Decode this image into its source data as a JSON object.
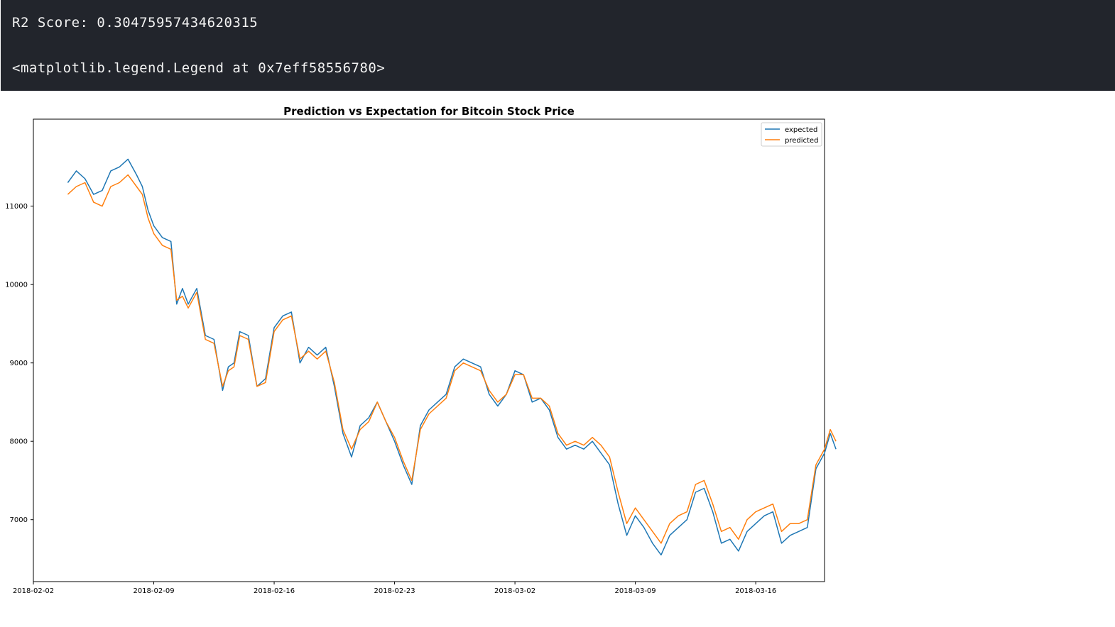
{
  "output": {
    "lines": [
      "R2 Score: 0.30475957434620315",
      "<matplotlib.legend.Legend at 0x7eff58556780>"
    ]
  },
  "colors": {
    "output_bg": "#22252c",
    "output_text": "#f2f2f2",
    "expected": "#1f77b4",
    "predicted": "#ff7f0e"
  },
  "chart_data": {
    "type": "line",
    "title": "Prediction vs Expectation for Bitcoin Stock Price",
    "xlabel": "",
    "ylabel": "",
    "x_range": [
      "2018-02-02",
      "2018-03-20"
    ],
    "ylim": [
      6210,
      12110
    ],
    "x_ticks": [
      "2018-02-02",
      "2018-02-09",
      "2018-02-16",
      "2018-02-23",
      "2018-03-02",
      "2018-03-09",
      "2018-03-16"
    ],
    "y_ticks": [
      7000,
      8000,
      9000,
      10000,
      11000
    ],
    "grid": false,
    "legend_position": "top-right",
    "series": [
      {
        "name": "expected",
        "color": "#1f77b4",
        "points": [
          [
            "2018-02-04",
            11300
          ],
          [
            "2018-02-04",
            11450
          ],
          [
            "2018-02-05",
            11350
          ],
          [
            "2018-02-05",
            11150
          ],
          [
            "2018-02-06",
            11200
          ],
          [
            "2018-02-06",
            11450
          ],
          [
            "2018-02-07",
            11500
          ],
          [
            "2018-02-07",
            11600
          ],
          [
            "2018-02-08",
            11400
          ],
          [
            "2018-02-08",
            11250
          ],
          [
            "2018-02-08",
            10950
          ],
          [
            "2018-02-09",
            10750
          ],
          [
            "2018-02-09",
            10600
          ],
          [
            "2018-02-10",
            10550
          ],
          [
            "2018-02-10",
            9750
          ],
          [
            "2018-02-10",
            9950
          ],
          [
            "2018-02-11",
            9750
          ],
          [
            "2018-02-11",
            9950
          ],
          [
            "2018-02-12",
            9350
          ],
          [
            "2018-02-12",
            9300
          ],
          [
            "2018-02-13",
            8650
          ],
          [
            "2018-02-13",
            8950
          ],
          [
            "2018-02-13",
            9000
          ],
          [
            "2018-02-14",
            9400
          ],
          [
            "2018-02-14",
            9350
          ],
          [
            "2018-02-15",
            8700
          ],
          [
            "2018-02-15",
            8800
          ],
          [
            "2018-02-16",
            9450
          ],
          [
            "2018-02-16",
            9600
          ],
          [
            "2018-02-17",
            9650
          ],
          [
            "2018-02-17",
            9000
          ],
          [
            "2018-02-18",
            9200
          ],
          [
            "2018-02-18",
            9100
          ],
          [
            "2018-02-19",
            9200
          ],
          [
            "2018-02-19",
            8700
          ],
          [
            "2018-02-20",
            8100
          ],
          [
            "2018-02-20",
            7800
          ],
          [
            "2018-02-21",
            8200
          ],
          [
            "2018-02-21",
            8300
          ],
          [
            "2018-02-22",
            8500
          ],
          [
            "2018-02-22",
            8250
          ],
          [
            "2018-02-23",
            8000
          ],
          [
            "2018-02-23",
            7700
          ],
          [
            "2018-02-24",
            7450
          ],
          [
            "2018-02-24",
            8200
          ],
          [
            "2018-02-25",
            8400
          ],
          [
            "2018-02-25",
            8500
          ],
          [
            "2018-02-26",
            8600
          ],
          [
            "2018-02-26",
            8950
          ],
          [
            "2018-02-27",
            9050
          ],
          [
            "2018-02-27",
            9000
          ],
          [
            "2018-02-28",
            8950
          ],
          [
            "2018-02-28",
            8600
          ],
          [
            "2018-03-01",
            8450
          ],
          [
            "2018-03-01",
            8600
          ],
          [
            "2018-03-02",
            8900
          ],
          [
            "2018-03-02",
            8850
          ],
          [
            "2018-03-03",
            8500
          ],
          [
            "2018-03-03",
            8550
          ],
          [
            "2018-03-04",
            8400
          ],
          [
            "2018-03-04",
            8050
          ],
          [
            "2018-03-05",
            7900
          ],
          [
            "2018-03-05",
            7950
          ],
          [
            "2018-03-06",
            7900
          ],
          [
            "2018-03-06",
            8000
          ],
          [
            "2018-03-07",
            7850
          ],
          [
            "2018-03-07",
            7700
          ],
          [
            "2018-03-08",
            7200
          ],
          [
            "2018-03-08",
            6800
          ],
          [
            "2018-03-09",
            7050
          ],
          [
            "2018-03-09",
            6900
          ],
          [
            "2018-03-10",
            6700
          ],
          [
            "2018-03-10",
            6550
          ],
          [
            "2018-03-11",
            6800
          ],
          [
            "2018-03-11",
            6900
          ],
          [
            "2018-03-12",
            7000
          ],
          [
            "2018-03-12",
            7350
          ],
          [
            "2018-03-13",
            7400
          ],
          [
            "2018-03-13",
            7100
          ],
          [
            "2018-03-14",
            6700
          ],
          [
            "2018-03-14",
            6750
          ],
          [
            "2018-03-15",
            6600
          ],
          [
            "2018-03-15",
            6850
          ],
          [
            "2018-03-16",
            6950
          ],
          [
            "2018-03-16",
            7050
          ],
          [
            "2018-03-17",
            7100
          ],
          [
            "2018-03-17",
            6700
          ],
          [
            "2018-03-18",
            6800
          ],
          [
            "2018-03-18",
            6850
          ],
          [
            "2018-03-19",
            6900
          ],
          [
            "2018-03-19",
            7650
          ],
          [
            "2018-03-20",
            7850
          ],
          [
            "2018-03-20",
            8100
          ],
          [
            "2018-03-20",
            7900
          ]
        ]
      },
      {
        "name": "predicted",
        "color": "#ff7f0e",
        "points": [
          [
            "2018-02-04",
            11150
          ],
          [
            "2018-02-04",
            11250
          ],
          [
            "2018-02-05",
            11300
          ],
          [
            "2018-02-05",
            11050
          ],
          [
            "2018-02-06",
            11000
          ],
          [
            "2018-02-06",
            11250
          ],
          [
            "2018-02-07",
            11300
          ],
          [
            "2018-02-07",
            11400
          ],
          [
            "2018-02-08",
            11250
          ],
          [
            "2018-02-08",
            11150
          ],
          [
            "2018-02-08",
            10850
          ],
          [
            "2018-02-09",
            10650
          ],
          [
            "2018-02-09",
            10500
          ],
          [
            "2018-02-10",
            10450
          ],
          [
            "2018-02-10",
            9800
          ],
          [
            "2018-02-10",
            9850
          ],
          [
            "2018-02-11",
            9700
          ],
          [
            "2018-02-11",
            9900
          ],
          [
            "2018-02-12",
            9300
          ],
          [
            "2018-02-12",
            9250
          ],
          [
            "2018-02-13",
            8700
          ],
          [
            "2018-02-13",
            8900
          ],
          [
            "2018-02-13",
            8950
          ],
          [
            "2018-02-14",
            9350
          ],
          [
            "2018-02-14",
            9300
          ],
          [
            "2018-02-15",
            8700
          ],
          [
            "2018-02-15",
            8750
          ],
          [
            "2018-02-16",
            9400
          ],
          [
            "2018-02-16",
            9550
          ],
          [
            "2018-02-17",
            9600
          ],
          [
            "2018-02-17",
            9050
          ],
          [
            "2018-02-18",
            9150
          ],
          [
            "2018-02-18",
            9050
          ],
          [
            "2018-02-19",
            9150
          ],
          [
            "2018-02-19",
            8750
          ],
          [
            "2018-02-20",
            8150
          ],
          [
            "2018-02-20",
            7900
          ],
          [
            "2018-02-21",
            8150
          ],
          [
            "2018-02-21",
            8250
          ],
          [
            "2018-02-22",
            8500
          ],
          [
            "2018-02-22",
            8250
          ],
          [
            "2018-02-23",
            8050
          ],
          [
            "2018-02-23",
            7750
          ],
          [
            "2018-02-24",
            7500
          ],
          [
            "2018-02-24",
            8150
          ],
          [
            "2018-02-25",
            8350
          ],
          [
            "2018-02-25",
            8450
          ],
          [
            "2018-02-26",
            8550
          ],
          [
            "2018-02-26",
            8900
          ],
          [
            "2018-02-27",
            9000
          ],
          [
            "2018-02-27",
            8950
          ],
          [
            "2018-02-28",
            8900
          ],
          [
            "2018-02-28",
            8650
          ],
          [
            "2018-03-01",
            8500
          ],
          [
            "2018-03-01",
            8600
          ],
          [
            "2018-03-02",
            8850
          ],
          [
            "2018-03-02",
            8850
          ],
          [
            "2018-03-03",
            8550
          ],
          [
            "2018-03-03",
            8550
          ],
          [
            "2018-03-04",
            8450
          ],
          [
            "2018-03-04",
            8100
          ],
          [
            "2018-03-05",
            7950
          ],
          [
            "2018-03-05",
            8000
          ],
          [
            "2018-03-06",
            7950
          ],
          [
            "2018-03-06",
            8050
          ],
          [
            "2018-03-07",
            7950
          ],
          [
            "2018-03-07",
            7800
          ],
          [
            "2018-03-08",
            7350
          ],
          [
            "2018-03-08",
            6950
          ],
          [
            "2018-03-09",
            7150
          ],
          [
            "2018-03-09",
            7000
          ],
          [
            "2018-03-10",
            6850
          ],
          [
            "2018-03-10",
            6700
          ],
          [
            "2018-03-11",
            6950
          ],
          [
            "2018-03-11",
            7050
          ],
          [
            "2018-03-12",
            7100
          ],
          [
            "2018-03-12",
            7450
          ],
          [
            "2018-03-13",
            7500
          ],
          [
            "2018-03-13",
            7200
          ],
          [
            "2018-03-14",
            6850
          ],
          [
            "2018-03-14",
            6900
          ],
          [
            "2018-03-15",
            6750
          ],
          [
            "2018-03-15",
            7000
          ],
          [
            "2018-03-16",
            7100
          ],
          [
            "2018-03-16",
            7150
          ],
          [
            "2018-03-17",
            7200
          ],
          [
            "2018-03-17",
            6850
          ],
          [
            "2018-03-18",
            6950
          ],
          [
            "2018-03-18",
            6950
          ],
          [
            "2018-03-19",
            7000
          ],
          [
            "2018-03-19",
            7700
          ],
          [
            "2018-03-20",
            7900
          ],
          [
            "2018-03-20",
            8150
          ],
          [
            "2018-03-20",
            8000
          ]
        ]
      }
    ]
  }
}
